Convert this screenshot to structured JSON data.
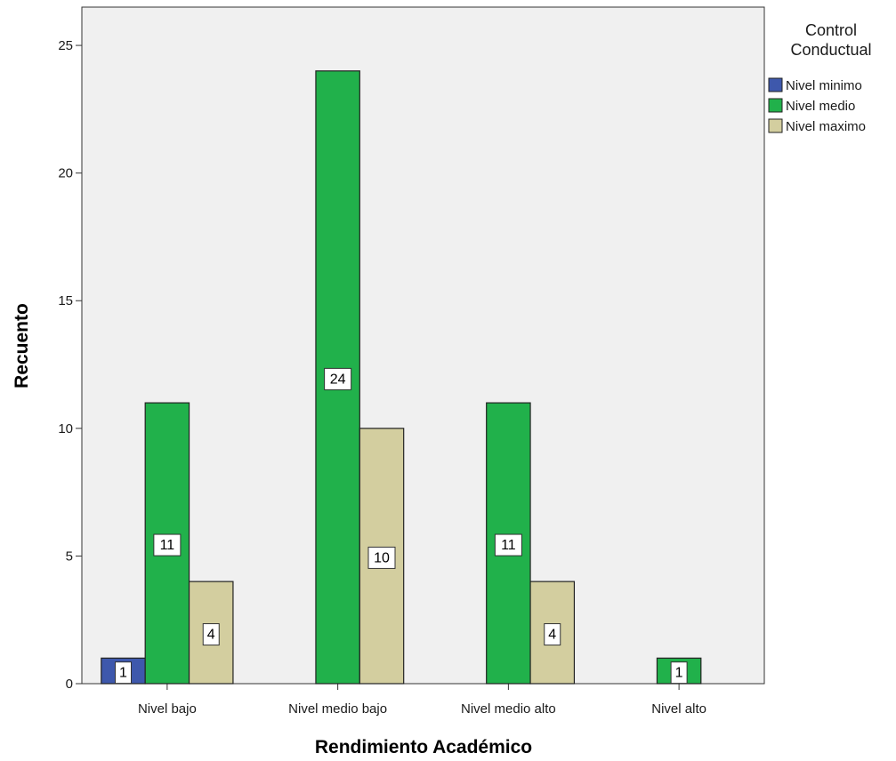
{
  "chart_data": {
    "type": "bar",
    "title": "",
    "xlabel": "Rendimiento Académico",
    "ylabel": "Recuento",
    "categories": [
      "Nivel bajo",
      "Nivel medio bajo",
      "Nivel medio alto",
      "Nivel alto"
    ],
    "ylim": [
      0,
      26.5
    ],
    "yticks": [
      0,
      5,
      10,
      15,
      20,
      25
    ],
    "legend_title_lines": [
      "Control",
      "Conductual"
    ],
    "legend_position": "top-right",
    "grid": false,
    "series": [
      {
        "name": "Nivel minimo",
        "color": "#3e58ac",
        "values": [
          1,
          null,
          null,
          null
        ]
      },
      {
        "name": "Nivel medio",
        "color": "#21b14b",
        "values": [
          11,
          24,
          11,
          1
        ]
      },
      {
        "name": "Nivel maximo",
        "color": "#d3ce9f",
        "values": [
          4,
          10,
          4,
          null
        ]
      }
    ],
    "plot_background": "#f0f0f0"
  }
}
